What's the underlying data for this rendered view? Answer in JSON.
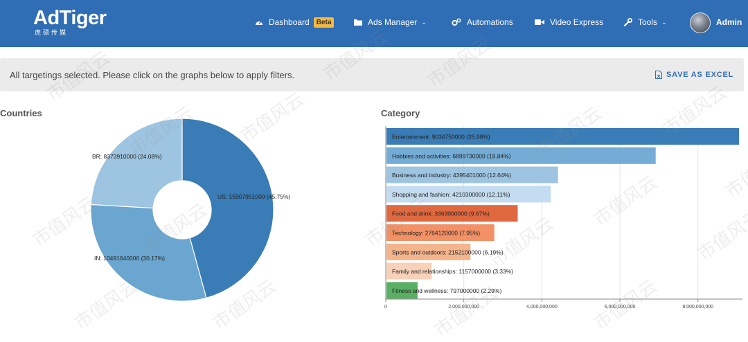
{
  "nav": {
    "logo": "AdTiger",
    "logo_sub": "虎硕传媒",
    "items": [
      {
        "label": "Dashboard",
        "icon": "dashboard-icon",
        "badge": "Beta"
      },
      {
        "label": "Ads Manager",
        "icon": "folder-icon",
        "dropdown": true
      },
      {
        "label": "Automations",
        "icon": "gears-icon"
      },
      {
        "label": "Video Express",
        "icon": "video-camera-icon"
      },
      {
        "label": "Tools",
        "icon": "wrench-icon",
        "dropdown": true
      }
    ],
    "user": "Admin"
  },
  "filter_bar": {
    "message": "All targetings selected. Please click on the graphs below to apply filters.",
    "save_label": "SAVE AS EXCEL"
  },
  "countries": {
    "title": "Countries"
  },
  "category": {
    "title": "Category"
  },
  "watermark": "市值风云",
  "chart_data": [
    {
      "type": "pie",
      "donut": true,
      "labels": [
        "US",
        "IN",
        "BR"
      ],
      "values": [
        15907951000,
        10491640000,
        8373910000
      ],
      "percents": [
        45.75,
        30.17,
        24.08
      ],
      "data_labels": [
        "US: 15907951000 (45.75%)",
        "IN: 10491640000 (30.17%)",
        "BR: 8373910000 (24.08%)"
      ],
      "colors": [
        "#3a7cb6",
        "#6aa6cf",
        "#9dc4e0"
      ]
    },
    {
      "type": "bar",
      "orientation": "horizontal",
      "categories": [
        "Entertainment",
        "Hobbies and activities",
        "Business and industry",
        "Shopping and fashion",
        "Food and drink",
        "Technology",
        "Sports and outdoors",
        "Family and relationships",
        "Fitness and wellness"
      ],
      "values": [
        9034750000,
        6899730000,
        4395401000,
        4210300000,
        3363000000,
        2764120000,
        2152100000,
        1157000000,
        797000000
      ],
      "data_labels": [
        "Entertainment: 9034750000 (25.98%)",
        "Hobbies and activities: 6899730000 (19.84%)",
        "Business and industry: 4395401000 (12.64%)",
        "Shopping and fashion: 4210300000 (12.11%)",
        "Food and drink: 3363000000 (9.67%)",
        "Technology: 2764120000 (7.95%)",
        "Sports and outdoors: 2152100000 (6.19%)",
        "Family and relationships: 1157000000 (3.33%)",
        "Fitness and wellness: 797000000 (2.29%)"
      ],
      "colors": [
        "#3a7cb6",
        "#74acd6",
        "#9dc4e0",
        "#c3dcef",
        "#e0683f",
        "#f19165",
        "#f4b48c",
        "#f7d2b8",
        "#5aaf64"
      ],
      "xticks": [
        "0",
        "2,000,000,000",
        "4,000,000,000",
        "6,000,000,000",
        "8,000,000,000"
      ],
      "xlim": [
        0,
        9034750000
      ],
      "grid": true
    }
  ]
}
